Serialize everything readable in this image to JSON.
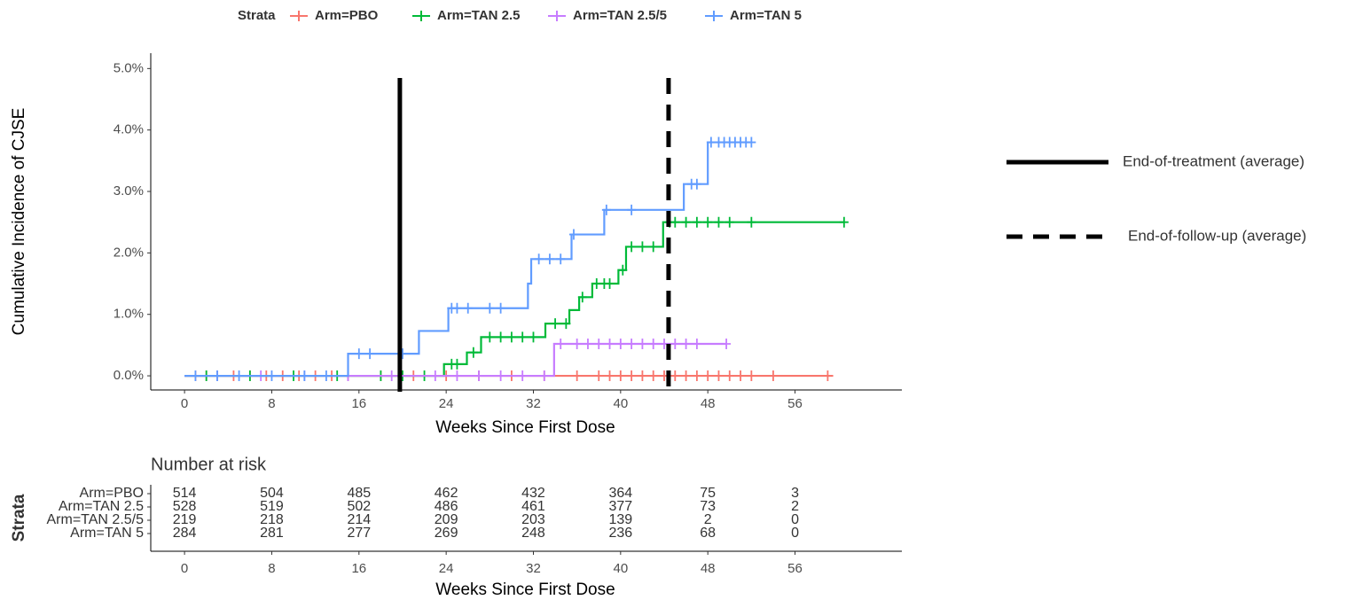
{
  "chart_data": [
    {
      "type": "step",
      "legend_title": "Strata",
      "ylabel": "Cumulative Incidence of CJSE",
      "xlabel": "Weeks Since First Dose",
      "xlim": [
        -3.1,
        65.8
      ],
      "ylim": [
        -0.23,
        5.25
      ],
      "xticks": [
        0,
        8,
        16,
        24,
        32,
        40,
        48,
        56
      ],
      "yticks": [
        {
          "value": 0,
          "label": "0.0%"
        },
        {
          "value": 1,
          "label": "1.0%"
        },
        {
          "value": 2,
          "label": "2.0%"
        },
        {
          "value": 3,
          "label": "3.0%"
        },
        {
          "value": 4,
          "label": "4.0%"
        },
        {
          "value": 5,
          "label": "5.0%"
        }
      ],
      "series": [
        {
          "name": "Arm=PBO",
          "color": "#F8766D",
          "x": [
            0,
            59.5
          ],
          "values": [
            0,
            0
          ],
          "censor": {
            "x": [
              1,
              2,
              3,
              4.5,
              6,
              7.5,
              9,
              10.5,
              12,
              13.5,
              15,
              18,
              21,
              24,
              27,
              30,
              33,
              36,
              38,
              39,
              40,
              41,
              42,
              43,
              44,
              45,
              46,
              47,
              48,
              49,
              50,
              51,
              52,
              54,
              59
            ],
            "y": [
              0,
              0,
              0,
              0,
              0,
              0,
              0,
              0,
              0,
              0,
              0,
              0,
              0,
              0,
              0,
              0,
              0,
              0,
              0,
              0,
              0,
              0,
              0,
              0,
              0,
              0,
              0,
              0,
              0,
              0,
              0,
              0,
              0,
              0,
              0
            ]
          }
        },
        {
          "name": "Arm=TAN 2.5",
          "color": "#00BA38",
          "x": [
            0,
            23.8,
            25.9,
            27.2,
            33.1,
            35.3,
            36.2,
            37.4,
            39.8,
            40.5,
            43.9,
            60.5
          ],
          "values": [
            0,
            0.19,
            0.38,
            0.63,
            0.85,
            1.07,
            1.28,
            1.5,
            1.72,
            2.1,
            2.5,
            2.5
          ],
          "censor": {
            "x": [
              2,
              6,
              10,
              14,
              18,
              20,
              22,
              24.5,
              25,
              26.5,
              28,
              29,
              30,
              31,
              32,
              34,
              35,
              36.5,
              37.8,
              38.5,
              39,
              40.2,
              41,
              42,
              43,
              44.5,
              45,
              46,
              47,
              48,
              49,
              50,
              52,
              60.5
            ],
            "y": [
              0,
              0,
              0,
              0,
              0,
              0,
              0,
              0.19,
              0.19,
              0.38,
              0.63,
              0.63,
              0.63,
              0.63,
              0.63,
              0.85,
              0.85,
              1.28,
              1.5,
              1.5,
              1.5,
              1.72,
              2.1,
              2.1,
              2.1,
              2.5,
              2.5,
              2.5,
              2.5,
              2.5,
              2.5,
              2.5,
              2.5,
              2.5
            ]
          }
        },
        {
          "name": "Arm=TAN 2.5/5",
          "color": "#C77CFF",
          "x": [
            0,
            33.9,
            49.7
          ],
          "values": [
            0,
            0.52,
            0.52
          ],
          "censor": {
            "x": [
              3,
              7,
              11,
              15,
              19,
              23,
              25,
              27,
              29,
              31,
              33,
              34.5,
              36,
              37,
              38,
              39,
              40,
              41,
              42,
              43,
              44,
              45,
              46,
              47,
              49.7
            ],
            "y": [
              0,
              0,
              0,
              0,
              0,
              0,
              0,
              0,
              0,
              0,
              0,
              0.52,
              0.52,
              0.52,
              0.52,
              0.52,
              0.52,
              0.52,
              0.52,
              0.52,
              0.52,
              0.52,
              0.52,
              0.52,
              0.52
            ]
          }
        },
        {
          "name": "Arm=TAN 5",
          "color": "#619CFF",
          "x": [
            0,
            15,
            21.5,
            24.2,
            31.5,
            31.8,
            35.5,
            38.5,
            45.8,
            48,
            52
          ],
          "values": [
            0,
            0.36,
            0.73,
            1.1,
            1.5,
            1.9,
            2.3,
            2.7,
            3.12,
            3.8,
            3.8
          ],
          "censor": {
            "x": [
              1,
              3,
              5,
              8,
              11,
              13,
              16,
              17,
              20,
              24.5,
              25,
              26,
              28,
              29,
              32.5,
              33.5,
              34.5,
              35.7,
              38.7,
              41,
              46.5,
              47,
              48.3,
              49,
              49.5,
              50,
              50.5,
              51,
              51.5,
              52
            ],
            "y": [
              0,
              0,
              0,
              0,
              0,
              0,
              0.36,
              0.36,
              0.36,
              1.1,
              1.1,
              1.1,
              1.1,
              1.1,
              1.9,
              1.9,
              1.9,
              2.3,
              2.7,
              2.7,
              3.12,
              3.12,
              3.8,
              3.8,
              3.8,
              3.8,
              3.8,
              3.8,
              3.8,
              3.8
            ]
          }
        }
      ],
      "vlines": [
        {
          "x": 19.75,
          "style": "solid",
          "label": "End-of-treatment (average)"
        },
        {
          "x": 44.4,
          "style": "dashed",
          "label": "End-of-follow-up (average)"
        }
      ]
    },
    {
      "type": "risk_table",
      "title": "Number at risk",
      "ylabel": "Strata",
      "xlabel": "Weeks Since First Dose",
      "xlim": [
        -3.1,
        65.8
      ],
      "xticks": [
        0,
        8,
        16,
        24,
        32,
        40,
        48,
        56
      ],
      "rows": [
        {
          "name": "Arm=PBO",
          "color": "#F8766D",
          "values": [
            514,
            504,
            485,
            462,
            432,
            364,
            75,
            3
          ]
        },
        {
          "name": "Arm=TAN 2.5",
          "color": "#00BA38",
          "values": [
            528,
            519,
            502,
            486,
            461,
            377,
            73,
            2
          ]
        },
        {
          "name": "Arm=TAN 2.5/5",
          "color": "#C77CFF",
          "values": [
            219,
            218,
            214,
            209,
            203,
            139,
            2,
            0
          ]
        },
        {
          "name": "Arm=TAN 5",
          "color": "#619CFF",
          "values": [
            284,
            281,
            277,
            269,
            248,
            236,
            68,
            0
          ]
        }
      ]
    }
  ]
}
